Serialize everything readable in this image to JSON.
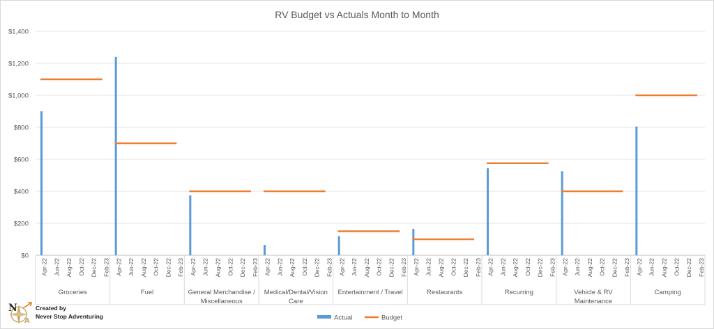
{
  "chart_data": {
    "type": "bar+line",
    "title": "RV Budget vs Actuals Month to Month",
    "ylim": [
      0,
      1400
    ],
    "y_ticks": [
      0,
      200,
      400,
      600,
      800,
      1000,
      1200,
      1400
    ],
    "y_tick_labels": [
      "$0",
      "$200",
      "$400",
      "$600",
      "$800",
      "$1,000",
      "$1,200",
      "$1,400"
    ],
    "month_ticks": [
      "Apr-22",
      "Jun-22",
      "Aug-22",
      "Oct-22",
      "Dec-22",
      "Feb-23"
    ],
    "months_per_group": 12,
    "gridlines": true,
    "legend_position": "bottom",
    "groups": [
      {
        "name": "Groceries",
        "label_lines": [
          "Groceries"
        ],
        "actual": [
          900
        ],
        "budget": 1100
      },
      {
        "name": "Fuel",
        "label_lines": [
          "Fuel"
        ],
        "actual": [
          1240
        ],
        "budget": 700
      },
      {
        "name": "General Merchandise / Miscellaneous",
        "label_lines": [
          "General Merchandise /",
          "Miscellaneous"
        ],
        "actual": [
          375
        ],
        "budget": 400
      },
      {
        "name": "Medical/Dental/Vision Care",
        "label_lines": [
          "Medical/Dental/Vision",
          "Care"
        ],
        "actual": [
          65
        ],
        "budget": 400
      },
      {
        "name": "Entertainment / Travel",
        "label_lines": [
          "Entertainment / Travel"
        ],
        "actual": [
          120
        ],
        "budget": 150
      },
      {
        "name": "Restaurants",
        "label_lines": [
          "Restaurants"
        ],
        "actual": [
          165
        ],
        "budget": 100
      },
      {
        "name": "Recurring",
        "label_lines": [
          "Recurring"
        ],
        "actual": [
          545
        ],
        "budget": 575
      },
      {
        "name": "Vehicle & RV Maintenance",
        "label_lines": [
          "Vehicle & RV",
          "Maintenance"
        ],
        "actual": [
          525
        ],
        "budget": 400
      },
      {
        "name": "Camping",
        "label_lines": [
          "Camping"
        ],
        "actual": [
          805
        ],
        "budget": 1000
      }
    ],
    "series": [
      {
        "name": "Actual",
        "kind": "bar",
        "color": "#5b9bd5"
      },
      {
        "name": "Budget",
        "kind": "line",
        "color": "#ed7d31"
      }
    ]
  },
  "credit": {
    "line1": "Created by",
    "line2": "Never Stop Adventuring",
    "logo_text": "NSA"
  }
}
